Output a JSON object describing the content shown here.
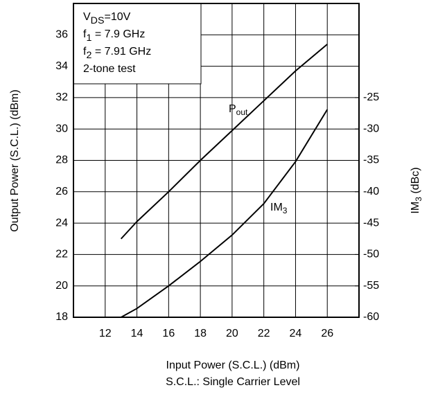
{
  "chart_data": {
    "type": "line",
    "xlabel": "Input Power (S.C.L.) (dBm)",
    "xlabel_note": "S.C.L.: Single Carrier Level",
    "ylabel": "Output Power (S.C.L.) (dBm)",
    "y2label": {
      "main": "IM",
      "sub": "3",
      "rest": " (dBc)"
    },
    "xlim": [
      10,
      28
    ],
    "xticks": [
      12,
      14,
      16,
      18,
      20,
      22,
      24,
      26
    ],
    "ylim": [
      18,
      38
    ],
    "yticks": [
      18,
      20,
      22,
      24,
      26,
      28,
      30,
      32,
      34,
      36
    ],
    "y2lim": [
      -60,
      -10
    ],
    "y2ticks": [
      -60,
      -55,
      -50,
      -45,
      -40,
      -35,
      -30,
      -25
    ],
    "grid": true,
    "conditions": [
      {
        "main": "V",
        "sub": "DS",
        "rest": "=10V"
      },
      {
        "main": "f",
        "sub": "1",
        "rest": " = 7.9 GHz"
      },
      {
        "main": "f",
        "sub": "2",
        "rest": " = 7.91 GHz"
      },
      {
        "main": "2-tone test"
      }
    ],
    "series": [
      {
        "name": {
          "main": "P",
          "sub": "out"
        },
        "color": "#000000",
        "x": [
          13,
          14,
          16,
          18,
          20,
          22,
          24,
          26
        ],
        "values": [
          23,
          24.1,
          26,
          28,
          29.9,
          31.8,
          33.7,
          35.4
        ]
      },
      {
        "name": {
          "main": "IM",
          "sub": "3"
        },
        "color": "#000000",
        "axis": "y2",
        "x": [
          13,
          14,
          16,
          18,
          20,
          22,
          24,
          26
        ],
        "values": [
          -60,
          -58.6,
          -55,
          -51.1,
          -46.9,
          -41.9,
          -35.2,
          -26.9
        ]
      }
    ]
  }
}
